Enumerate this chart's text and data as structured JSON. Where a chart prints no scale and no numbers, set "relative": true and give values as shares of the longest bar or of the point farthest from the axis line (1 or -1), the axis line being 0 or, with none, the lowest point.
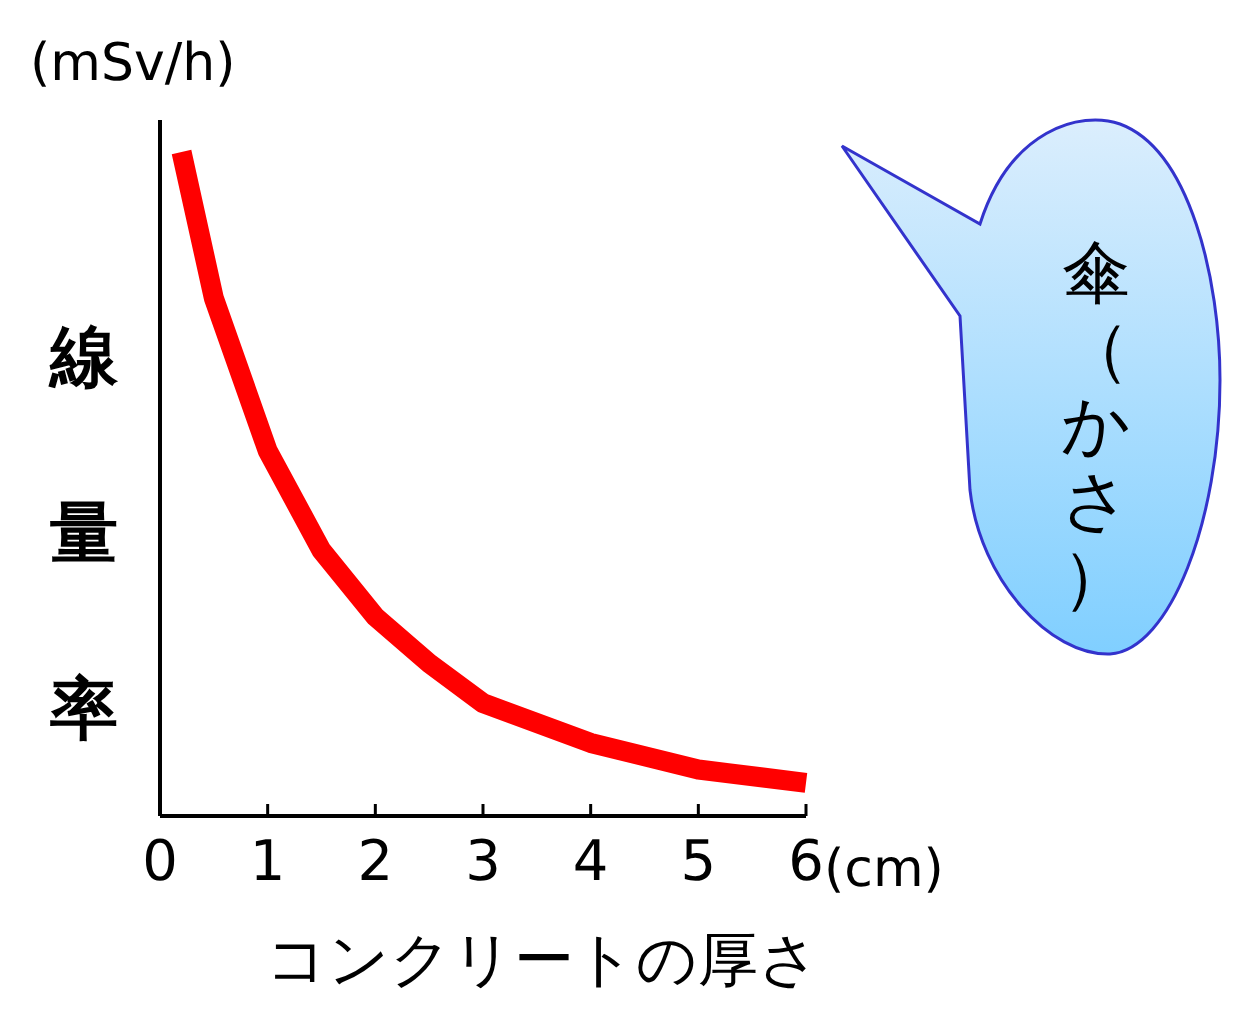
{
  "chart_data": {
    "type": "line",
    "relative": true,
    "ylabel": "線量率",
    "xlabel": "コンクリートの厚さ",
    "annotations": [
      "(mSv/h)",
      "(cm)",
      "傘（かさ）"
    ],
    "xlim": [
      0,
      6
    ],
    "xticks": [
      0,
      1,
      2,
      3,
      4,
      5,
      6
    ],
    "line_style": "solid",
    "series": [
      {
        "color": "#ff0000",
        "x": [
          0.2,
          0.5,
          1,
          1.5,
          2,
          2.5,
          3,
          4,
          5,
          6
        ],
        "values": [
          1,
          0.78,
          0.55,
          0.4,
          0.3,
          0.23,
          0.17,
          0.11,
          0.07,
          0.05
        ]
      }
    ]
  }
}
